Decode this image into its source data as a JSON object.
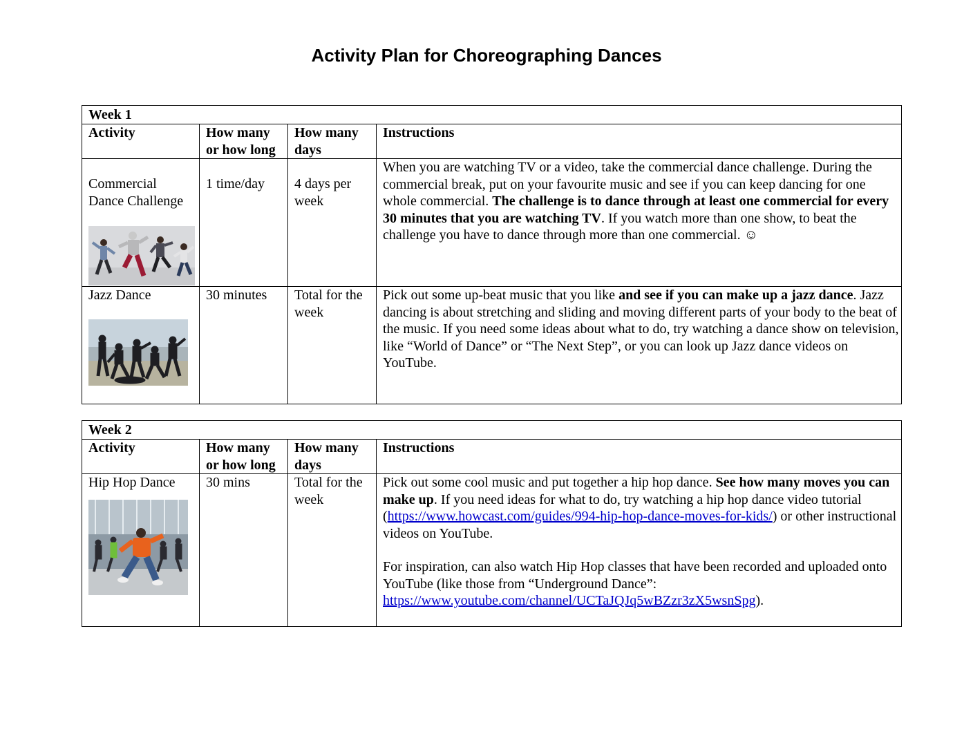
{
  "title": "Activity Plan for Choreographing Dances",
  "columns": {
    "activity": "Activity",
    "how_line1": "How many",
    "how_line2": "or how long",
    "days_line1": "How many",
    "days_line2": "days",
    "instructions": "Instructions"
  },
  "week1": {
    "label": "Week 1",
    "rows": [
      {
        "activity": "Commercial Dance Challenge",
        "how": "1 time/day",
        "days": "4 days per week",
        "instr_a": "When you are watching TV or a video, take the commercial dance challenge. During the commercial break, put on your favourite music and see if you can keep dancing for one whole commercial. ",
        "instr_b": "The challenge is to dance through at least one commercial for every 30 minutes that you are watching TV",
        "instr_c": ". If you watch more than one show, to beat the challenge you have to dance through more than one commercial. ☺"
      },
      {
        "activity": "Jazz Dance",
        "how": "30 minutes",
        "days": "Total for the week",
        "instr_a": "Pick out some up-beat music that you like ",
        "instr_b": "and see if you can make up a jazz dance",
        "instr_c": ". Jazz dancing is about stretching and sliding and moving different parts of your body to the beat of the music. If you need some ideas about what to do, try watching a dance show on television, like “World of Dance” or “The Next Step”, or you can look up Jazz dance videos on YouTube."
      }
    ]
  },
  "week2": {
    "label": "Week 2",
    "rows": [
      {
        "activity": "Hip Hop Dance",
        "how": "30 mins",
        "days": "Total for the week",
        "instr_a": "Pick out some cool music and put together a hip hop dance. ",
        "instr_b": "See how many moves you can make up",
        "instr_c": ". If you need ideas for what to do, try watching a hip hop dance video tutorial (",
        "link1": "https://www.howcast.com/guides/994-hip-hop-dance-moves-for-kids/",
        "instr_d": ") or other instructional videos on YouTube.",
        "instr_e": "For inspiration, can also watch Hip Hop classes that have been recorded and uploaded onto YouTube  (like those from “Underground Dance”: ",
        "link2": "https://www.youtube.com/channel/UCTaJQJq5wBZzr3zX5wsnSpg",
        "instr_f": ")."
      }
    ]
  },
  "photo_colors": {
    "studio_bg": "#d9dadd",
    "sky": "#c7d3dc",
    "hall": "#8d9aa5",
    "pants_red": "#9b1b34",
    "jacket_orange": "#e8621d",
    "dark": "#1e1e22"
  }
}
